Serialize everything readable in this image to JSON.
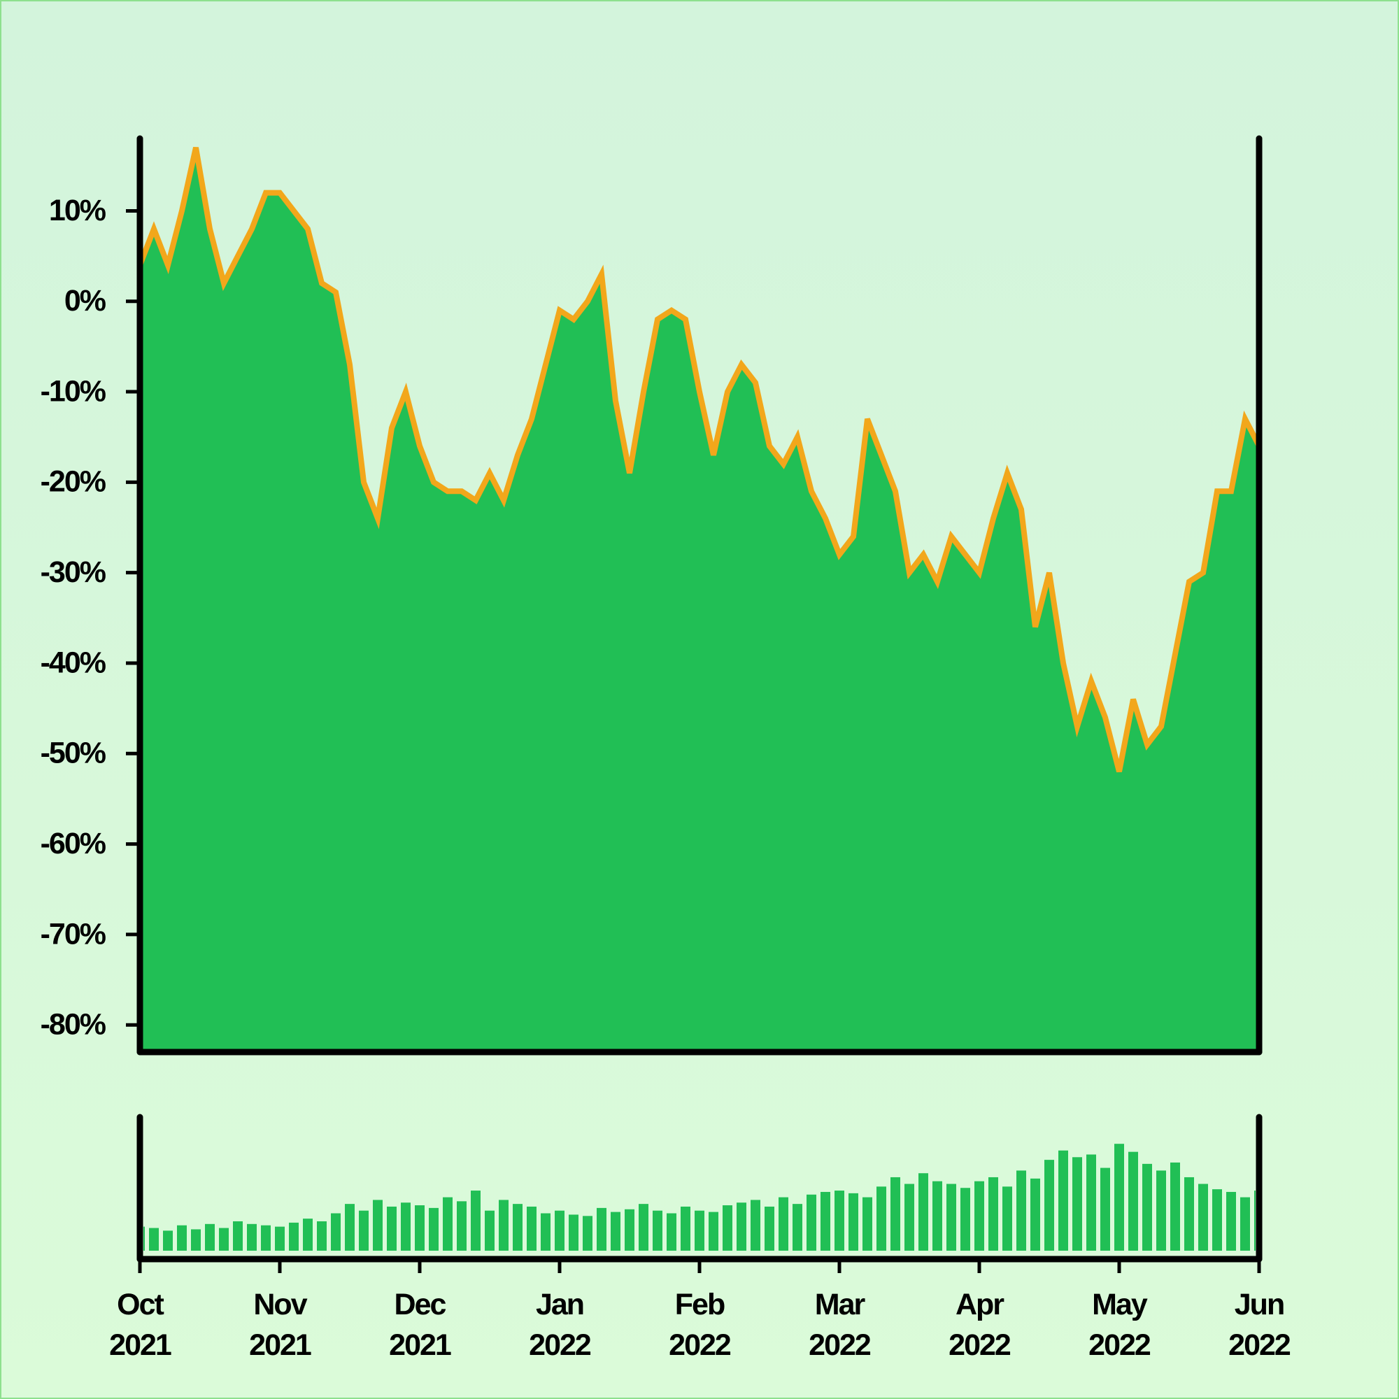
{
  "chart_data": {
    "type": "area",
    "categories": [
      "Oct\n2021",
      null,
      null,
      null,
      null,
      null,
      null,
      null,
      null,
      null,
      "Nov\n2021",
      null,
      null,
      null,
      null,
      null,
      null,
      null,
      null,
      null,
      "Dec\n2021",
      null,
      null,
      null,
      null,
      null,
      null,
      null,
      null,
      null,
      "Jan\n2022",
      null,
      null,
      null,
      null,
      null,
      null,
      null,
      null,
      null,
      "Feb\n2022",
      null,
      null,
      null,
      null,
      null,
      null,
      null,
      null,
      null,
      "Mar\n2022",
      null,
      null,
      null,
      null,
      null,
      null,
      null,
      null,
      null,
      "Apr\n2022",
      null,
      null,
      null,
      null,
      null,
      null,
      null,
      null,
      null,
      "May\n2022",
      null,
      null,
      null,
      null,
      null,
      null,
      null,
      null,
      null,
      "Jun\n2022"
    ],
    "series": [
      {
        "color": "#21bf55",
        "line_color": "#f2a71b",
        "values": [
          4,
          8,
          4,
          10,
          17,
          8,
          2,
          5,
          8,
          12,
          12,
          10,
          8,
          2,
          1,
          -7,
          -20,
          -24,
          -14,
          -10,
          -16,
          -20,
          -21,
          -21,
          -22,
          -19,
          -22,
          -17,
          -13,
          -7,
          -1,
          -2,
          0,
          3,
          -11,
          -19,
          -10,
          -2,
          -1,
          -2,
          -10,
          -17,
          -10,
          -7,
          -9,
          -16,
          -18,
          -15,
          -21,
          -24,
          -28,
          -26,
          -13,
          -17,
          -21,
          -30,
          -28,
          -31,
          -26,
          -28,
          -30,
          -24,
          -19,
          -23,
          -36,
          -30,
          -40,
          -47,
          -42,
          -46,
          -52,
          -44,
          -49,
          -47,
          -39,
          -31,
          -30,
          -21,
          -21,
          -13,
          -16
        ]
      }
    ],
    "ylim": [
      -83,
      18
    ],
    "yticks": [
      {
        "value": 10,
        "label": "10%"
      },
      {
        "value": 0,
        "label": "0%"
      },
      {
        "value": -10,
        "label": "-10%"
      },
      {
        "value": -20,
        "label": "-20%"
      },
      {
        "value": -30,
        "label": "-30%"
      },
      {
        "value": -40,
        "label": "-40%"
      },
      {
        "value": -50,
        "label": "-50%"
      },
      {
        "value": -60,
        "label": "-60%"
      },
      {
        "value": -70,
        "label": "-70%"
      },
      {
        "value": -80,
        "label": "-80%"
      }
    ],
    "volume": {
      "type": "bar",
      "color": "#21bf55",
      "ylim": [
        0,
        100
      ],
      "values": [
        18,
        17,
        15,
        19,
        16,
        20,
        17,
        22,
        20,
        19,
        18,
        21,
        24,
        22,
        28,
        35,
        30,
        38,
        33,
        36,
        34,
        32,
        40,
        37,
        45,
        30,
        38,
        35,
        33,
        28,
        30,
        27,
        26,
        32,
        29,
        31,
        35,
        30,
        28,
        33,
        30,
        29,
        34,
        36,
        38,
        33,
        40,
        35,
        42,
        44,
        45,
        43,
        40,
        48,
        55,
        50,
        58,
        52,
        50,
        47,
        52,
        55,
        48,
        60,
        54,
        68,
        75,
        70,
        72,
        62,
        80,
        74,
        65,
        60,
        66,
        55,
        50,
        46,
        44,
        40,
        45
      ]
    }
  }
}
